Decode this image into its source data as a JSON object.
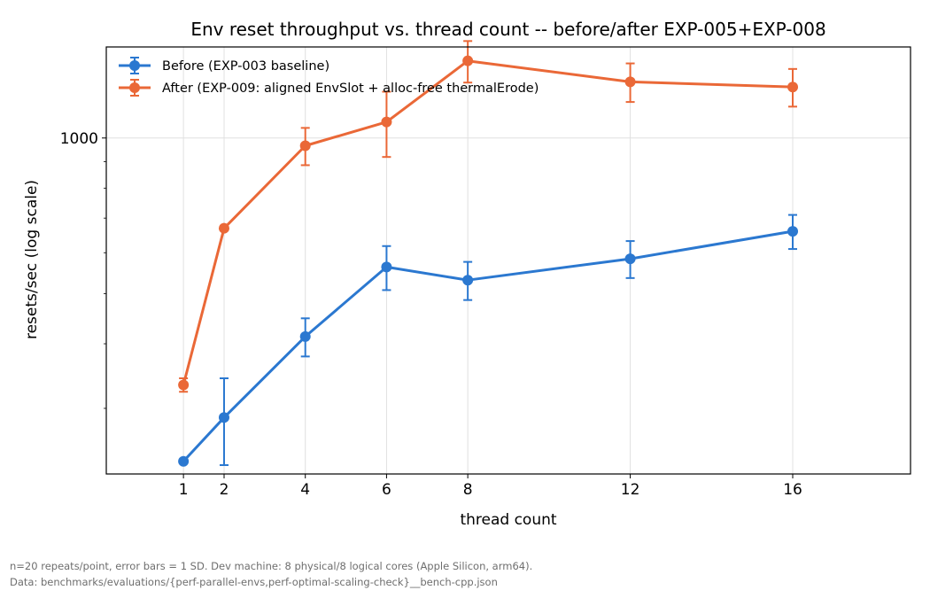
{
  "chart_data": {
    "type": "line",
    "title": "Env reset throughput vs. thread count -- before/after EXP-005+EXP-008",
    "xlabel": "thread count",
    "ylabel": "resets/sec (log scale)",
    "x": [
      1,
      2,
      4,
      6,
      8,
      12,
      16
    ],
    "xticks": [
      "1",
      "2",
      "4",
      "6",
      "8",
      "12",
      "16"
    ],
    "xlim": [
      -0.9,
      18.9
    ],
    "yscale": "log",
    "ylim": [
      224,
      1500
    ],
    "yticks": [
      {
        "value": 1000,
        "label": "1000"
      }
    ],
    "yminor": [
      300,
      400,
      500,
      600,
      700,
      800,
      900
    ],
    "grid": true,
    "legend_position": "top-left",
    "series": [
      {
        "name": "Before (EXP-003 baseline)",
        "color": "#2b78d0",
        "values": [
          237,
          288,
          413,
          563,
          531,
          584,
          660
        ],
        "err": [
          0,
          55,
          35,
          55,
          45,
          48,
          50
        ]
      },
      {
        "name": "After (EXP-009: aligned EnvSlot + alloc-free thermalErode)",
        "color": "#ea6837",
        "values": [
          333,
          669,
          966,
          1074,
          1410,
          1284,
          1255
        ],
        "err": [
          10,
          0,
          80,
          155,
          130,
          110,
          105
        ]
      }
    ]
  },
  "footer": {
    "line1": "n=20 repeats/point, error bars = 1 SD. Dev machine: 8 physical/8 logical cores (Apple Silicon, arm64).",
    "line2": "Data: benchmarks/evaluations/{perf-parallel-envs,perf-optimal-scaling-check}__bench-cpp.json"
  }
}
